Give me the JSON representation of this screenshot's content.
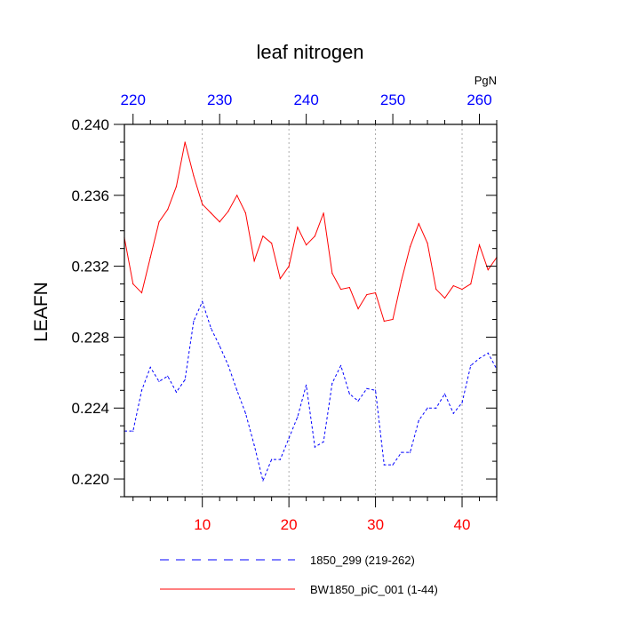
{
  "chart_data": {
    "type": "line",
    "title": "leaf nitrogen",
    "ylabel": "LEAFN",
    "xlabel": "",
    "top_axis_label": "PgN",
    "xlim": [
      1,
      44
    ],
    "ylim": [
      0.219,
      0.24
    ],
    "x_ticks": [
      10,
      20,
      30,
      40
    ],
    "x_tick_labels": [
      "10",
      "20",
      "30",
      "40"
    ],
    "top_ticks": [
      220,
      230,
      240,
      250,
      260
    ],
    "top_tick_labels": [
      "220",
      "230",
      "240",
      "250",
      "260"
    ],
    "top_offset": 218,
    "y_ticks": [
      0.22,
      0.224,
      0.228,
      0.232,
      0.236,
      0.24
    ],
    "y_tick_labels": [
      "0.220",
      "0.224",
      "0.228",
      "0.232",
      "0.236",
      "0.240"
    ],
    "grid": "vertical dotted at labeled x ticks",
    "x": [
      1,
      2,
      3,
      4,
      5,
      6,
      7,
      8,
      9,
      10,
      11,
      12,
      13,
      14,
      15,
      16,
      17,
      18,
      19,
      20,
      21,
      22,
      23,
      24,
      25,
      26,
      27,
      28,
      29,
      30,
      31,
      32,
      33,
      34,
      35,
      36,
      37,
      38,
      39,
      40,
      41,
      42,
      43,
      44
    ],
    "series": [
      {
        "name": "1850_299 (219-262)",
        "color": "#0000ff",
        "dash": "dashed",
        "values": [
          0.2227,
          0.2227,
          0.225,
          0.2263,
          0.2255,
          0.2258,
          0.2249,
          0.2256,
          0.2289,
          0.23,
          0.2285,
          0.2275,
          0.2264,
          0.225,
          0.2237,
          0.2219,
          0.2199,
          0.2211,
          0.2211,
          0.2223,
          0.2235,
          0.2253,
          0.2218,
          0.2221,
          0.2254,
          0.2264,
          0.2248,
          0.2244,
          0.2251,
          0.225,
          0.2208,
          0.2208,
          0.2215,
          0.2215,
          0.2233,
          0.224,
          0.224,
          0.2248,
          0.2237,
          0.2243,
          0.2264,
          0.2268,
          0.2271,
          0.2262
        ]
      },
      {
        "name": "BW1850_piC_001 (1-44)",
        "color": "#ff0000",
        "dash": "solid",
        "values": [
          0.2336,
          0.231,
          0.2305,
          0.2325,
          0.2345,
          0.2352,
          0.2365,
          0.239,
          0.2371,
          0.2355,
          0.235,
          0.2345,
          0.2351,
          0.236,
          0.235,
          0.2323,
          0.2337,
          0.2333,
          0.2313,
          0.232,
          0.2342,
          0.2332,
          0.2337,
          0.235,
          0.2316,
          0.2307,
          0.2308,
          0.2296,
          0.2304,
          0.2305,
          0.2289,
          0.229,
          0.2312,
          0.2331,
          0.2344,
          0.2333,
          0.2307,
          0.2302,
          0.2309,
          0.2307,
          0.231,
          0.2332,
          0.2318,
          0.2325
        ]
      }
    ]
  },
  "colors": {
    "axis": "#000000",
    "bottom_tick_labels": "#ff0000",
    "top_tick_labels": "#0000ff",
    "grid": "#999999"
  }
}
